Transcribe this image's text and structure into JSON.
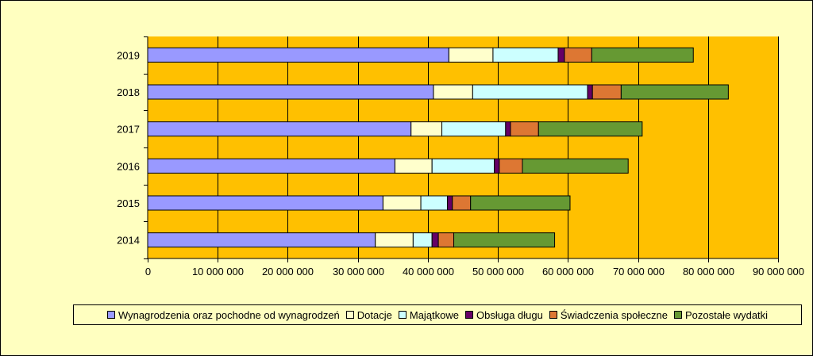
{
  "chart_data": {
    "type": "bar",
    "orientation": "horizontal",
    "stacked": true,
    "title": "",
    "xlabel": "",
    "ylabel": "",
    "xlim": [
      0,
      90000000
    ],
    "x_ticks": [
      "0",
      "10 000 000",
      "20 000 000",
      "30 000 000",
      "40 000 000",
      "50 000 000",
      "60 000 000",
      "70 000 000",
      "80 000 000",
      "90 000 000"
    ],
    "x_tick_values": [
      0,
      10000000,
      20000000,
      30000000,
      40000000,
      50000000,
      60000000,
      70000000,
      80000000,
      90000000
    ],
    "categories": [
      "2019",
      "2018",
      "2017",
      "2016",
      "2015",
      "2014"
    ],
    "grid": "vertical",
    "legend_position": "bottom",
    "series": [
      {
        "name": "Wynagrodzenia oraz pochodne od wynagrodzeń",
        "color": "#9999FF",
        "values": [
          43000000,
          40800000,
          37600000,
          35300000,
          33600000,
          32500000
        ]
      },
      {
        "name": "Dotacje",
        "color": "#FFFFCC",
        "values": [
          6300000,
          5600000,
          4400000,
          5300000,
          5400000,
          5400000
        ]
      },
      {
        "name": "Majątkowe",
        "color": "#CCFFFF",
        "values": [
          9300000,
          16400000,
          9100000,
          8900000,
          3800000,
          2700000
        ]
      },
      {
        "name": "Obsługa długu",
        "color": "#660066",
        "values": [
          900000,
          700000,
          700000,
          700000,
          700000,
          900000
        ]
      },
      {
        "name": "Świadczenia społeczne",
        "color": "#DD7733",
        "values": [
          3900000,
          4100000,
          4000000,
          3300000,
          2600000,
          2200000
        ]
      },
      {
        "name": "Pozostałe wydatki",
        "color": "#669933",
        "values": [
          14500000,
          15300000,
          14800000,
          15100000,
          14200000,
          14400000
        ]
      }
    ]
  }
}
